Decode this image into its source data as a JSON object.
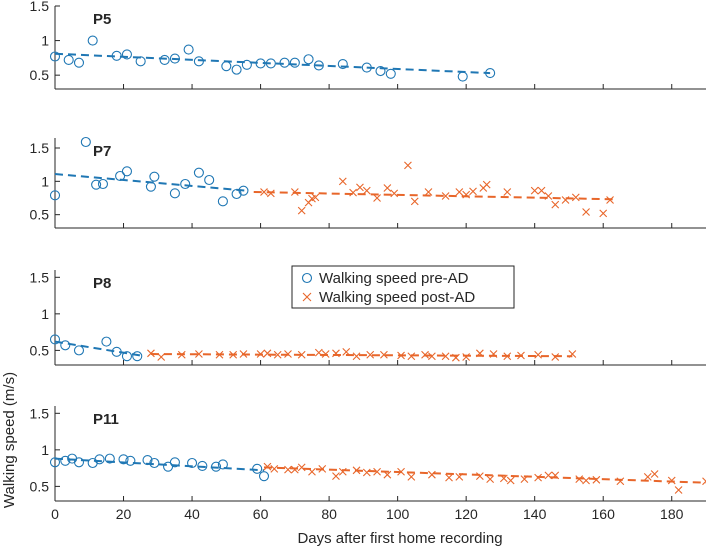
{
  "chart_data": {
    "type": "scatter",
    "xlabel": "Days after first home recording",
    "ylabel": "Walking speed (m/s)",
    "xlim": [
      0,
      190
    ],
    "x_ticks": [
      0,
      20,
      40,
      60,
      80,
      100,
      120,
      140,
      160,
      180
    ],
    "colors": {
      "pre": "#1f77b4",
      "post": "#e8662a"
    },
    "legend": {
      "position": "center (inside P8 panel)",
      "entries": [
        {
          "key": "pre",
          "label": "Walking speed pre-AD",
          "marker": "circle"
        },
        {
          "key": "post",
          "label": "Walking speed post-AD",
          "marker": "x"
        }
      ]
    },
    "panels": [
      {
        "title": "P5",
        "ylim": [
          0.3,
          1.5
        ],
        "y_ticks": [
          0.5,
          1,
          1.5
        ],
        "y_tick_labels": [
          "0.5",
          "1",
          "1.5"
        ],
        "pre": {
          "points": [
            [
              0,
              0.77
            ],
            [
              4,
              0.72
            ],
            [
              7,
              0.68
            ],
            [
              11,
              1.0
            ],
            [
              18,
              0.78
            ],
            [
              21,
              0.8
            ],
            [
              25,
              0.7
            ],
            [
              32,
              0.72
            ],
            [
              35,
              0.74
            ],
            [
              39,
              0.87
            ],
            [
              42,
              0.7
            ],
            [
              50,
              0.63
            ],
            [
              53,
              0.58
            ],
            [
              56,
              0.65
            ],
            [
              60,
              0.67
            ],
            [
              63,
              0.67
            ],
            [
              67,
              0.68
            ],
            [
              70,
              0.68
            ],
            [
              74,
              0.73
            ],
            [
              77,
              0.64
            ],
            [
              84,
              0.66
            ],
            [
              91,
              0.61
            ],
            [
              95,
              0.56
            ],
            [
              98,
              0.52
            ],
            [
              119,
              0.48
            ],
            [
              127,
              0.53
            ]
          ],
          "fit": [
            [
              0,
              0.81
            ],
            [
              127,
              0.53
            ]
          ]
        },
        "post": null
      },
      {
        "title": "P7",
        "ylim": [
          0.3,
          1.65
        ],
        "y_ticks": [
          0.5,
          1,
          1.5
        ],
        "y_tick_labels": [
          "0.5",
          "1",
          "1.5"
        ],
        "pre": {
          "points": [
            [
              0,
              0.79
            ],
            [
              9,
              1.59
            ],
            [
              12,
              0.95
            ],
            [
              14,
              0.96
            ],
            [
              19,
              1.08
            ],
            [
              21,
              1.15
            ],
            [
              28,
              0.92
            ],
            [
              29,
              1.07
            ],
            [
              35,
              0.82
            ],
            [
              38,
              0.96
            ],
            [
              42,
              1.13
            ],
            [
              45,
              1.02
            ],
            [
              49,
              0.7
            ],
            [
              53,
              0.81
            ],
            [
              55,
              0.86
            ]
          ],
          "fit": [
            [
              0,
              1.11
            ],
            [
              56,
              0.86
            ]
          ]
        },
        "post": {
          "points": [
            [
              61,
              0.84
            ],
            [
              63,
              0.82
            ],
            [
              70,
              0.84
            ],
            [
              72,
              0.56
            ],
            [
              74,
              0.68
            ],
            [
              75,
              0.74
            ],
            [
              76,
              0.76
            ],
            [
              84,
              1.0
            ],
            [
              87,
              0.83
            ],
            [
              89,
              0.91
            ],
            [
              91,
              0.86
            ],
            [
              94,
              0.75
            ],
            [
              97,
              0.9
            ],
            [
              99,
              0.82
            ],
            [
              103,
              1.24
            ],
            [
              105,
              0.7
            ],
            [
              109,
              0.84
            ],
            [
              114,
              0.78
            ],
            [
              118,
              0.84
            ],
            [
              120,
              0.8
            ],
            [
              122,
              0.85
            ],
            [
              125,
              0.9
            ],
            [
              126,
              0.95
            ],
            [
              132,
              0.84
            ],
            [
              140,
              0.86
            ],
            [
              142,
              0.86
            ],
            [
              144,
              0.78
            ],
            [
              146,
              0.65
            ],
            [
              149,
              0.72
            ],
            [
              152,
              0.76
            ],
            [
              155,
              0.54
            ],
            [
              160,
              0.52
            ],
            [
              162,
              0.72
            ]
          ],
          "fit": [
            [
              58,
              0.84
            ],
            [
              164,
              0.73
            ]
          ]
        }
      },
      {
        "title": "P8",
        "ylim": [
          0.3,
          1.6
        ],
        "y_ticks": [
          0.5,
          1,
          1.5
        ],
        "y_tick_labels": [
          "0.5",
          "1",
          "1.5"
        ],
        "pre": {
          "points": [
            [
              0,
              0.65
            ],
            [
              3,
              0.57
            ],
            [
              7,
              0.5
            ],
            [
              15,
              0.62
            ],
            [
              18,
              0.48
            ],
            [
              21,
              0.42
            ],
            [
              24,
              0.42
            ]
          ],
          "fit": [
            [
              0,
              0.62
            ],
            [
              25,
              0.43
            ]
          ]
        },
        "post": {
          "points": [
            [
              28,
              0.46
            ],
            [
              31,
              0.41
            ],
            [
              37,
              0.44
            ],
            [
              42,
              0.45
            ],
            [
              48,
              0.44
            ],
            [
              52,
              0.44
            ],
            [
              55,
              0.45
            ],
            [
              60,
              0.45
            ],
            [
              62,
              0.46
            ],
            [
              65,
              0.44
            ],
            [
              68,
              0.45
            ],
            [
              72,
              0.44
            ],
            [
              77,
              0.47
            ],
            [
              79,
              0.45
            ],
            [
              82,
              0.46
            ],
            [
              85,
              0.48
            ],
            [
              88,
              0.42
            ],
            [
              92,
              0.44
            ],
            [
              96,
              0.44
            ],
            [
              101,
              0.43
            ],
            [
              104,
              0.42
            ],
            [
              108,
              0.44
            ],
            [
              110,
              0.42
            ],
            [
              114,
              0.42
            ],
            [
              117,
              0.4
            ],
            [
              120,
              0.41
            ],
            [
              124,
              0.46
            ],
            [
              128,
              0.45
            ],
            [
              132,
              0.42
            ],
            [
              136,
              0.43
            ],
            [
              141,
              0.44
            ],
            [
              146,
              0.41
            ],
            [
              151,
              0.45
            ]
          ],
          "fit": [
            [
              28,
              0.45
            ],
            [
              151,
              0.42
            ]
          ]
        }
      },
      {
        "title": "P11",
        "ylim": [
          0.3,
          1.6
        ],
        "y_ticks": [
          0.5,
          1,
          1.5
        ],
        "y_tick_labels": [
          "0.5",
          "1",
          "1.5"
        ],
        "pre": {
          "points": [
            [
              0,
              0.83
            ],
            [
              3,
              0.85
            ],
            [
              5,
              0.88
            ],
            [
              7,
              0.83
            ],
            [
              11,
              0.82
            ],
            [
              13,
              0.87
            ],
            [
              16,
              0.88
            ],
            [
              20,
              0.87
            ],
            [
              22,
              0.85
            ],
            [
              27,
              0.86
            ],
            [
              29,
              0.82
            ],
            [
              33,
              0.77
            ],
            [
              35,
              0.83
            ],
            [
              40,
              0.82
            ],
            [
              43,
              0.78
            ],
            [
              47,
              0.77
            ],
            [
              49,
              0.8
            ],
            [
              59,
              0.74
            ],
            [
              61,
              0.64
            ]
          ],
          "fit": [
            [
              0,
              0.88
            ],
            [
              61,
              0.72
            ]
          ]
        },
        "post": {
          "points": [
            [
              62,
              0.77
            ],
            [
              64,
              0.74
            ],
            [
              68,
              0.73
            ],
            [
              70,
              0.73
            ],
            [
              72,
              0.76
            ],
            [
              75,
              0.7
            ],
            [
              78,
              0.74
            ],
            [
              82,
              0.64
            ],
            [
              84,
              0.7
            ],
            [
              88,
              0.72
            ],
            [
              91,
              0.69
            ],
            [
              94,
              0.7
            ],
            [
              97,
              0.66
            ],
            [
              101,
              0.7
            ],
            [
              104,
              0.63
            ],
            [
              110,
              0.66
            ],
            [
              115,
              0.62
            ],
            [
              118,
              0.63
            ],
            [
              124,
              0.64
            ],
            [
              127,
              0.6
            ],
            [
              131,
              0.61
            ],
            [
              133,
              0.58
            ],
            [
              137,
              0.6
            ],
            [
              141,
              0.62
            ],
            [
              144,
              0.65
            ],
            [
              146,
              0.65
            ],
            [
              153,
              0.6
            ],
            [
              155,
              0.58
            ],
            [
              158,
              0.59
            ],
            [
              165,
              0.57
            ],
            [
              173,
              0.63
            ],
            [
              175,
              0.67
            ],
            [
              180,
              0.58
            ],
            [
              182,
              0.45
            ],
            [
              190,
              0.57
            ]
          ],
          "fit": [
            [
              61,
              0.76
            ],
            [
              190,
              0.55
            ]
          ]
        }
      }
    ]
  }
}
